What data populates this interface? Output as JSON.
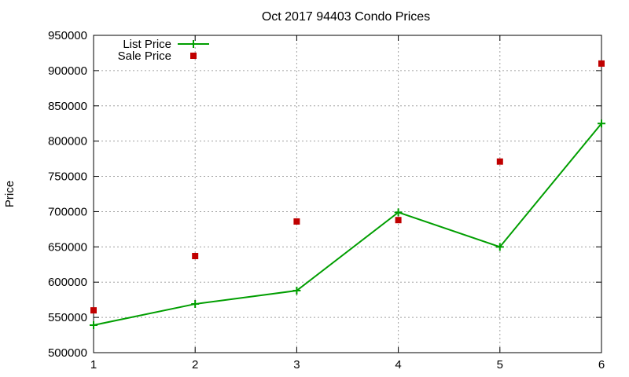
{
  "chart_data": {
    "type": "line",
    "title": "Oct 2017 94403 Condo Prices",
    "xlabel": "",
    "ylabel": "Price",
    "xlim": [
      1,
      6
    ],
    "ylim": [
      500000,
      950000
    ],
    "x_ticks": [
      "1",
      "2",
      "3",
      "4",
      "5",
      "6"
    ],
    "y_ticks": [
      "500000",
      "550000",
      "600000",
      "650000",
      "700000",
      "750000",
      "800000",
      "850000",
      "900000",
      "950000"
    ],
    "grid": true,
    "legend_position": "top-left",
    "series": [
      {
        "name": "List Price",
        "style": "line-with-plus-markers",
        "color": "#009e00",
        "x": [
          1,
          2,
          3,
          4,
          5,
          6
        ],
        "y": [
          539000,
          569000,
          588000,
          699000,
          650000,
          825000
        ]
      },
      {
        "name": "Sale Price",
        "style": "square-markers",
        "color": "#c00000",
        "x": [
          1,
          2,
          3,
          4,
          5,
          6
        ],
        "y": [
          560000,
          637000,
          686000,
          688000,
          771000,
          910000
        ]
      }
    ]
  }
}
